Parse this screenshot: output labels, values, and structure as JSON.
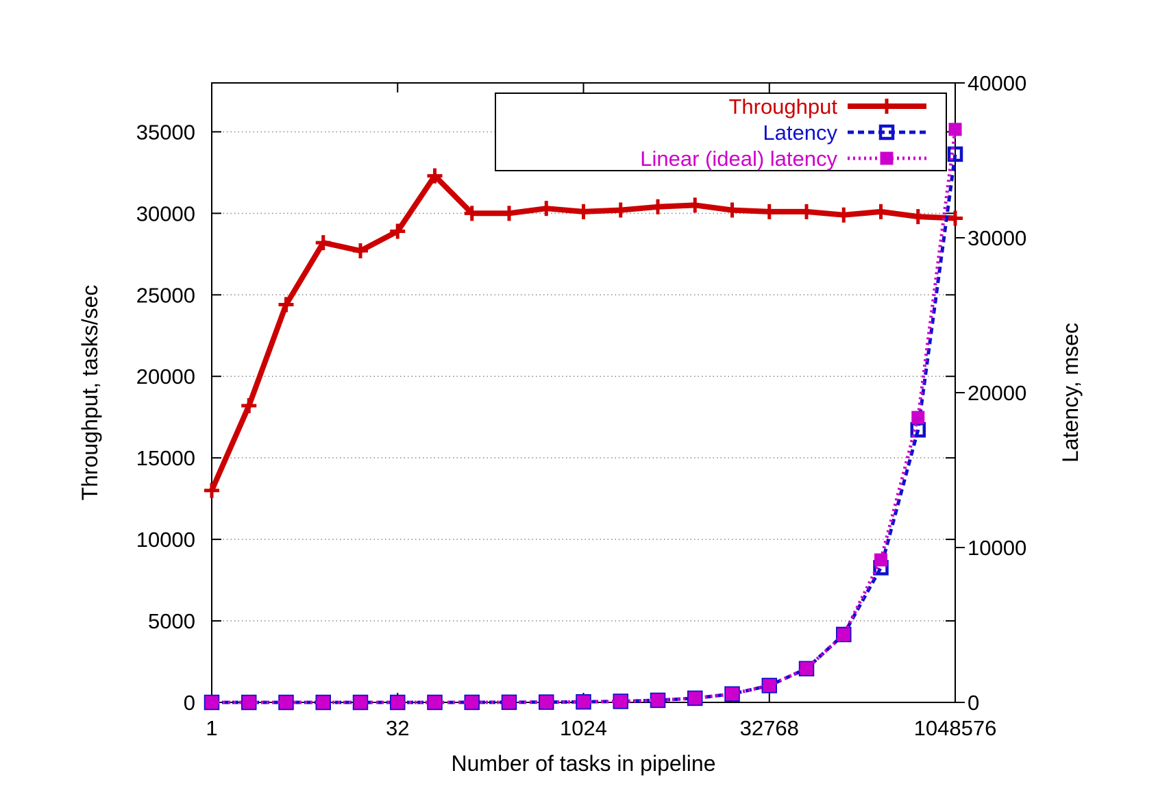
{
  "chart_data": {
    "type": "line",
    "title": "",
    "xlabel": "Number of tasks in pipeline",
    "ylabel": "Throughput, tasks/sec",
    "y2label": "Latency, msec",
    "x_scale": "log2",
    "x_ticks": [
      "1",
      "32",
      "1024",
      "32768",
      "1048576"
    ],
    "xlim": [
      1,
      1048576
    ],
    "ylim": [
      0,
      38000
    ],
    "y_ticks": [
      "0",
      "5000",
      "10000",
      "15000",
      "20000",
      "25000",
      "30000",
      "35000"
    ],
    "y2lim": [
      0,
      40000
    ],
    "y2_ticks": [
      "0",
      "10000",
      "20000",
      "30000",
      "40000"
    ],
    "grid": "horizontal dotted at left-axis ticks",
    "legend_position": "top-right",
    "x": [
      1,
      2,
      4,
      8,
      16,
      32,
      64,
      128,
      256,
      512,
      1024,
      2048,
      4096,
      8192,
      16384,
      32768,
      65536,
      131072,
      262144,
      524288,
      1048576
    ],
    "series": [
      {
        "name": "Throughput",
        "axis": "left",
        "color": "#cc0000",
        "style": "solid",
        "marker": "plus",
        "values": [
          13000,
          18200,
          24400,
          28200,
          27700,
          28900,
          32300,
          30000,
          30000,
          30300,
          30100,
          30200,
          30400,
          30500,
          30200,
          30100,
          30100,
          29900,
          30100,
          29800,
          29700
        ]
      },
      {
        "name": "Latency",
        "axis": "right",
        "color": "#1010cc",
        "style": "dashed",
        "marker": "open-square",
        "values": [
          0,
          0,
          0,
          0,
          1,
          1,
          2,
          4,
          9,
          17,
          34,
          68,
          135,
          269,
          543,
          1089,
          2178,
          4384,
          8700,
          17600,
          35400
        ]
      },
      {
        "name": "Linear (ideal) latency",
        "axis": "right",
        "color": "#cc00cc",
        "style": "dotted",
        "marker": "filled-square",
        "values": [
          0,
          0,
          0,
          0,
          1,
          1,
          2,
          4,
          8,
          17,
          34,
          68,
          136,
          273,
          546,
          1092,
          2185,
          4370,
          9200,
          18400,
          37000
        ]
      }
    ]
  }
}
